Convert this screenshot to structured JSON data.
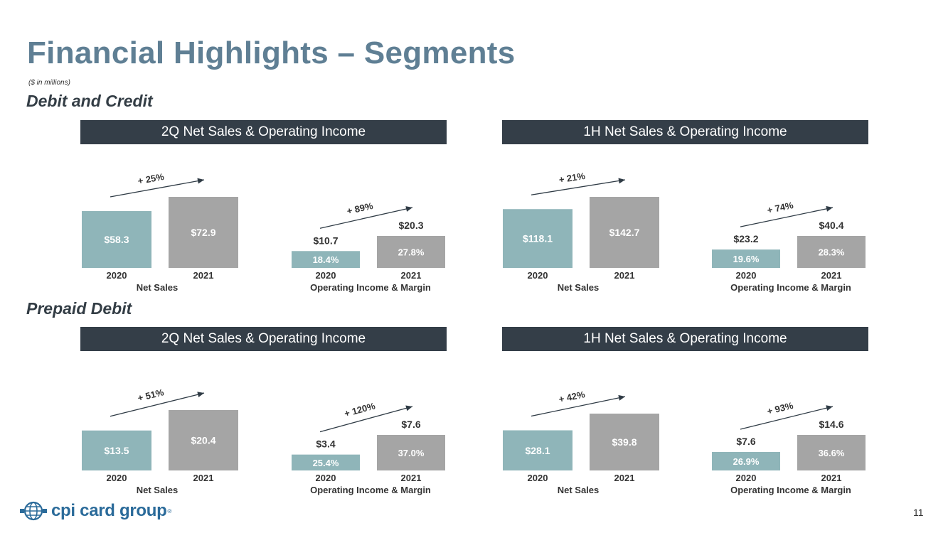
{
  "slide": {
    "title": "Financial Highlights – Segments",
    "units": "($ in millions)",
    "page_number": "11",
    "logo_text": "cpi card group",
    "logo_mark": "®"
  },
  "sections": [
    {
      "title": "Debit and Credit",
      "panels": [
        {
          "header": "2Q Net Sales & Operating Income"
        },
        {
          "header": "1H Net Sales & Operating Income"
        }
      ]
    },
    {
      "title": "Prepaid Debit",
      "panels": [
        {
          "header": "2Q Net Sales & Operating Income"
        },
        {
          "header": "1H Net Sales & Operating Income"
        }
      ]
    }
  ],
  "colors": {
    "bar_2020": "#8fb5b9",
    "bar_2021": "#a5a5a5",
    "header_bg": "#343e48",
    "title": "#5f7f94",
    "arrow": "#2f3b45",
    "logo": "#2b6b9a"
  },
  "chart_data": [
    {
      "type": "bar",
      "section": "Debit and Credit",
      "period": "2Q",
      "xlabel": "Net Sales",
      "categories": [
        "2020",
        "2021"
      ],
      "values": [
        58.3,
        72.9
      ],
      "labels": [
        "$58.3",
        "$72.9"
      ],
      "growth_label": "+ 25%"
    },
    {
      "type": "bar",
      "section": "Debit and Credit",
      "period": "2Q",
      "xlabel": "Operating Income & Margin",
      "categories": [
        "2020",
        "2021"
      ],
      "values": [
        10.7,
        20.3
      ],
      "labels": [
        "$10.7",
        "$20.3"
      ],
      "margins": [
        "18.4%",
        "27.8%"
      ],
      "growth_label": "+ 89%"
    },
    {
      "type": "bar",
      "section": "Debit and Credit",
      "period": "1H",
      "xlabel": "Net Sales",
      "categories": [
        "2020",
        "2021"
      ],
      "values": [
        118.1,
        142.7
      ],
      "labels": [
        "$118.1",
        "$142.7"
      ],
      "growth_label": "+ 21%"
    },
    {
      "type": "bar",
      "section": "Debit and Credit",
      "period": "1H",
      "xlabel": "Operating Income & Margin",
      "categories": [
        "2020",
        "2021"
      ],
      "values": [
        23.2,
        40.4
      ],
      "labels": [
        "$23.2",
        "$40.4"
      ],
      "margins": [
        "19.6%",
        "28.3%"
      ],
      "growth_label": "+ 74%"
    },
    {
      "type": "bar",
      "section": "Prepaid Debit",
      "period": "2Q",
      "xlabel": "Net Sales",
      "categories": [
        "2020",
        "2021"
      ],
      "values": [
        13.5,
        20.4
      ],
      "labels": [
        "$13.5",
        "$20.4"
      ],
      "growth_label": "+ 51%"
    },
    {
      "type": "bar",
      "section": "Prepaid Debit",
      "period": "2Q",
      "xlabel": "Operating Income & Margin",
      "categories": [
        "2020",
        "2021"
      ],
      "values": [
        3.4,
        7.6
      ],
      "labels": [
        "$3.4",
        "$7.6"
      ],
      "margins": [
        "25.4%",
        "37.0%"
      ],
      "growth_label": "+ 120%"
    },
    {
      "type": "bar",
      "section": "Prepaid Debit",
      "period": "1H",
      "xlabel": "Net Sales",
      "categories": [
        "2020",
        "2021"
      ],
      "values": [
        28.1,
        39.8
      ],
      "labels": [
        "$28.1",
        "$39.8"
      ],
      "growth_label": "+ 42%"
    },
    {
      "type": "bar",
      "section": "Prepaid Debit",
      "period": "1H",
      "xlabel": "Operating Income & Margin",
      "categories": [
        "2020",
        "2021"
      ],
      "values": [
        7.6,
        14.6
      ],
      "labels": [
        "$7.6",
        "$14.6"
      ],
      "margins": [
        "26.9%",
        "36.6%"
      ],
      "growth_label": "+ 93%"
    }
  ]
}
